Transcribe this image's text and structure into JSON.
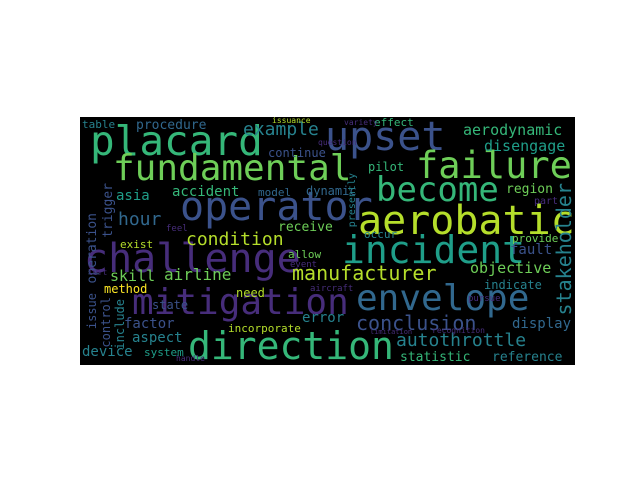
{
  "palette": {
    "background": "#000000",
    "purple": "#46217a",
    "violet": "#472d7b",
    "indigo": "#3b528b",
    "blue": "#31688e",
    "teal": "#26828e",
    "sea": "#1f9e89",
    "green": "#35b779",
    "lime": "#6ece58",
    "yellowgreen": "#b5de2b",
    "yellow": "#fde725"
  },
  "words": {
    "placard": "placard",
    "upset": "upset",
    "fundamental": "fundamental",
    "failure": "failure",
    "operator": "operator",
    "become": "become",
    "aerobatic": "aerobatic",
    "challenge": "challenge",
    "incident": "incident",
    "mitigation": "mitigation",
    "envelope": "envelope",
    "direction": "direction",
    "manufacturer": "manufacturer",
    "conclusion": "conclusion",
    "autothrottle": "autothrottle",
    "stakeholder": "stakeholder",
    "example": "example",
    "aerodynamic": "aerodynamic",
    "disengage": "disengage",
    "hour": "hour",
    "condition": "condition",
    "accident": "accident",
    "airline": "airline",
    "objective": "objective",
    "skill": "skill",
    "method": "method",
    "factor": "factor",
    "aspect": "aspect",
    "device": "device",
    "error": "error",
    "display": "display",
    "statistic": "statistic",
    "reference": "reference",
    "procedure": "procedure",
    "table": "table",
    "continue": "continue",
    "pilot": "pilot",
    "effect": "effect",
    "region": "region",
    "fault": "fault",
    "receive": "receive",
    "allow": "allow",
    "need": "need",
    "operation": "operation",
    "trigger": "trigger",
    "asia": "asia",
    "state": "state",
    "exist": "exist",
    "issue": "issue",
    "control": "control",
    "include": "include",
    "system": "system",
    "incorporate": "incorporate",
    "dynamic": "dynamic",
    "model": "model",
    "occur": "occur",
    "provide": "provide",
    "indicate": "indicate",
    "presently": "presently",
    "variety": "variety",
    "issuance": "issuance",
    "left": "left",
    "part": "part",
    "event": "event",
    "aircraft": "aircraft",
    "pursue": "pursue",
    "handle": "handle",
    "question": "question",
    "feel": "feel",
    "recognition": "recognition",
    "limitation": "limitation"
  }
}
